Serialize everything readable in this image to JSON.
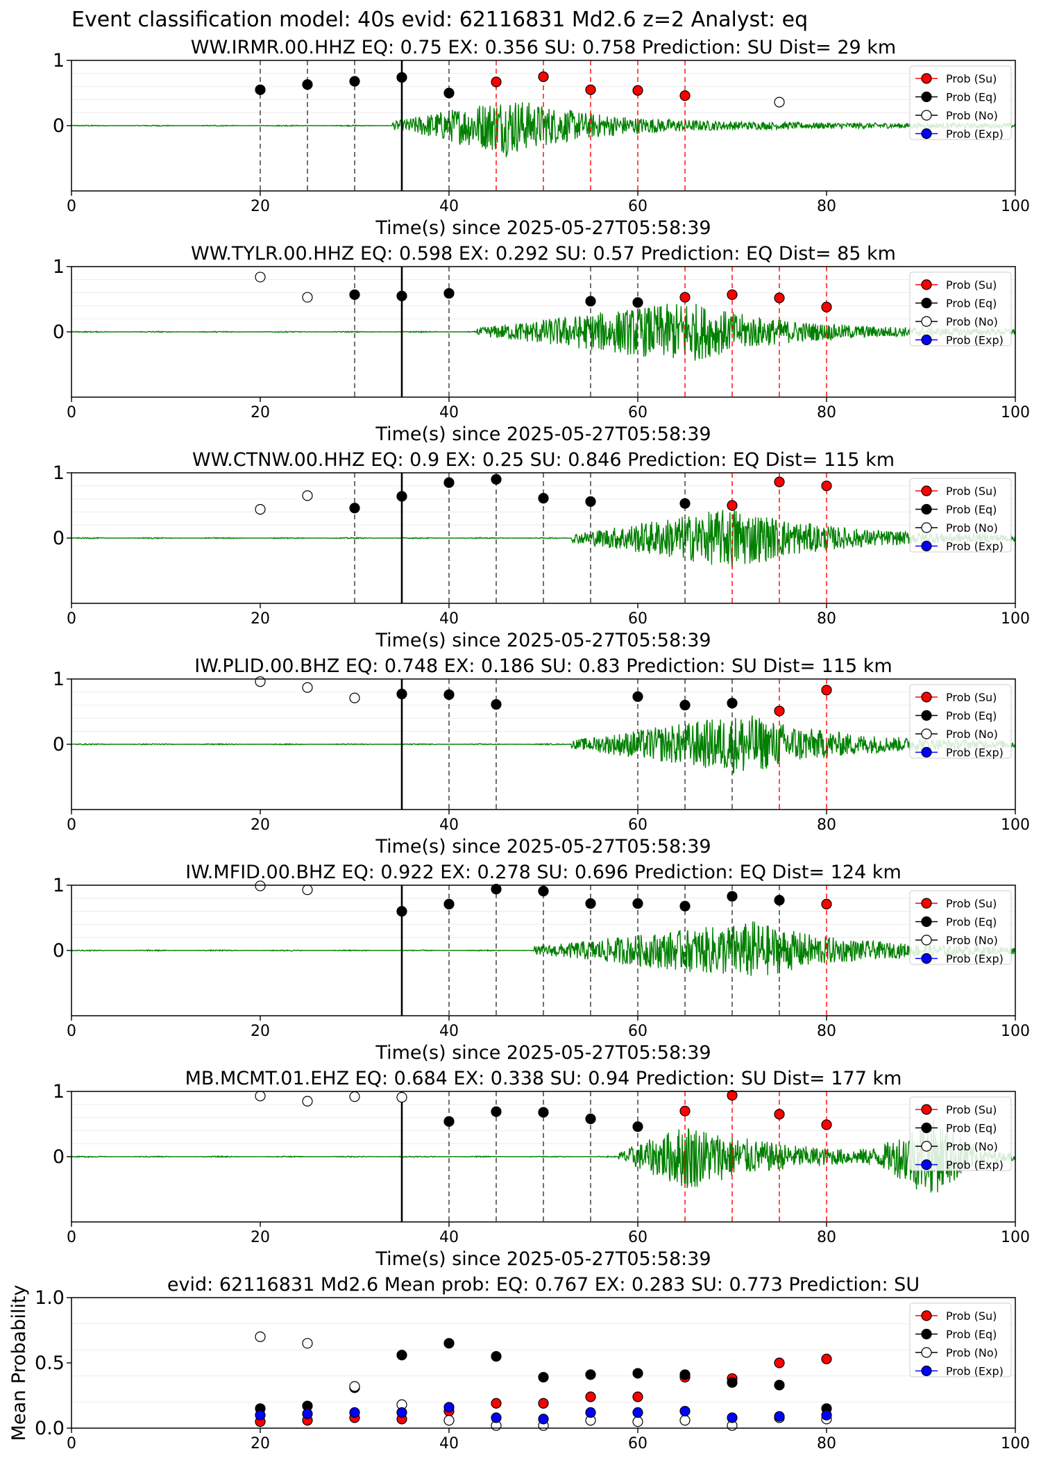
{
  "figure_title": "Event classification model: 40s evid: 62116831 Md2.6 z=2 Analyst: eq",
  "xlabel": "Time(s) since 2025-05-27T05:58:39",
  "legend_labels": [
    "Prob (Su)",
    "Prob (Eq)",
    "Prob (No)",
    "Prob (Exp)"
  ],
  "colors": {
    "su": "#ff0000",
    "eq": "#000000",
    "no": "#ffffff",
    "exp": "#0000ff",
    "waveform": "#008000",
    "onset_line": "#000000"
  },
  "chart_data": [
    {
      "type": "scatter",
      "title": "WW.IRMR.00.HHZ   EQ: 0.75  EX: 0.356  SU: 0.758   Prediction: SU    Dist= 29 km",
      "xlim": [
        0,
        100
      ],
      "ylim": [
        -1,
        1
      ],
      "yticks": [
        0,
        1
      ],
      "xticks": [
        0,
        20,
        40,
        60,
        80,
        100
      ],
      "onset": 35,
      "waveform": {
        "start": 34,
        "peak": 46,
        "end": 100,
        "amp": 0.75
      },
      "points": [
        {
          "x": 20,
          "y": 0.55,
          "cls": "eq"
        },
        {
          "x": 25,
          "y": 0.63,
          "cls": "eq"
        },
        {
          "x": 30,
          "y": 0.68,
          "cls": "eq"
        },
        {
          "x": 35,
          "y": 0.74,
          "cls": "eq"
        },
        {
          "x": 40,
          "y": 0.5,
          "cls": "eq"
        },
        {
          "x": 45,
          "y": 0.67,
          "cls": "su"
        },
        {
          "x": 50,
          "y": 0.75,
          "cls": "su"
        },
        {
          "x": 55,
          "y": 0.55,
          "cls": "su"
        },
        {
          "x": 60,
          "y": 0.54,
          "cls": "su"
        },
        {
          "x": 65,
          "y": 0.46,
          "cls": "su"
        },
        {
          "x": 75,
          "y": 0.36,
          "cls": "no"
        }
      ]
    },
    {
      "type": "scatter",
      "title": "WW.TYLR.00.HHZ   EQ: 0.598  EX: 0.292  SU: 0.57   Prediction: EQ    Dist= 85 km",
      "xlim": [
        0,
        100
      ],
      "ylim": [
        -1,
        1
      ],
      "yticks": [
        0,
        1
      ],
      "xticks": [
        0,
        20,
        40,
        60,
        80,
        100
      ],
      "onset": 35,
      "waveform": {
        "start": 43,
        "peak": 65,
        "end": 100,
        "amp": 0.8
      },
      "points": [
        {
          "x": 20,
          "y": 0.84,
          "cls": "no"
        },
        {
          "x": 25,
          "y": 0.53,
          "cls": "no"
        },
        {
          "x": 30,
          "y": 0.57,
          "cls": "eq"
        },
        {
          "x": 35,
          "y": 0.55,
          "cls": "eq"
        },
        {
          "x": 40,
          "y": 0.59,
          "cls": "eq"
        },
        {
          "x": 55,
          "y": 0.47,
          "cls": "eq"
        },
        {
          "x": 60,
          "y": 0.45,
          "cls": "eq"
        },
        {
          "x": 65,
          "y": 0.53,
          "cls": "su"
        },
        {
          "x": 70,
          "y": 0.57,
          "cls": "su"
        },
        {
          "x": 75,
          "y": 0.52,
          "cls": "su"
        },
        {
          "x": 80,
          "y": 0.38,
          "cls": "su"
        }
      ]
    },
    {
      "type": "scatter",
      "title": "WW.CTNW.00.HHZ   EQ: 0.9  EX: 0.25  SU: 0.846   Prediction: EQ    Dist= 115 km",
      "xlim": [
        0,
        100
      ],
      "ylim": [
        -1,
        1
      ],
      "yticks": [
        0,
        1
      ],
      "xticks": [
        0,
        20,
        40,
        60,
        80,
        100
      ],
      "onset": 35,
      "waveform": {
        "start": 53,
        "peak": 70,
        "end": 100,
        "amp": 0.8
      },
      "points": [
        {
          "x": 20,
          "y": 0.44,
          "cls": "no"
        },
        {
          "x": 25,
          "y": 0.65,
          "cls": "no"
        },
        {
          "x": 30,
          "y": 0.46,
          "cls": "eq"
        },
        {
          "x": 35,
          "y": 0.64,
          "cls": "eq"
        },
        {
          "x": 40,
          "y": 0.85,
          "cls": "eq"
        },
        {
          "x": 45,
          "y": 0.9,
          "cls": "eq"
        },
        {
          "x": 50,
          "y": 0.61,
          "cls": "eq"
        },
        {
          "x": 55,
          "y": 0.56,
          "cls": "eq"
        },
        {
          "x": 65,
          "y": 0.53,
          "cls": "eq"
        },
        {
          "x": 70,
          "y": 0.5,
          "cls": "su"
        },
        {
          "x": 75,
          "y": 0.86,
          "cls": "su"
        },
        {
          "x": 80,
          "y": 0.8,
          "cls": "su"
        }
      ]
    },
    {
      "type": "scatter",
      "title": "IW.PLID.00.BHZ   EQ: 0.748  EX: 0.186  SU: 0.83   Prediction: SU    Dist= 115 km",
      "xlim": [
        0,
        100
      ],
      "ylim": [
        -1,
        1
      ],
      "yticks": [
        0,
        1
      ],
      "xticks": [
        0,
        20,
        40,
        60,
        80,
        100
      ],
      "onset": 35,
      "waveform": {
        "start": 53,
        "peak": 71,
        "end": 100,
        "amp": 0.8
      },
      "points": [
        {
          "x": 20,
          "y": 0.96,
          "cls": "no"
        },
        {
          "x": 25,
          "y": 0.87,
          "cls": "no"
        },
        {
          "x": 30,
          "y": 0.71,
          "cls": "no"
        },
        {
          "x": 35,
          "y": 0.77,
          "cls": "eq"
        },
        {
          "x": 40,
          "y": 0.76,
          "cls": "eq"
        },
        {
          "x": 45,
          "y": 0.61,
          "cls": "eq"
        },
        {
          "x": 60,
          "y": 0.73,
          "cls": "eq"
        },
        {
          "x": 65,
          "y": 0.6,
          "cls": "eq"
        },
        {
          "x": 70,
          "y": 0.63,
          "cls": "eq"
        },
        {
          "x": 75,
          "y": 0.51,
          "cls": "su"
        },
        {
          "x": 80,
          "y": 0.83,
          "cls": "su"
        }
      ]
    },
    {
      "type": "scatter",
      "title": "IW.MFID.00.BHZ   EQ: 0.922  EX: 0.278  SU: 0.696   Prediction: EQ    Dist= 124 km",
      "xlim": [
        0,
        100
      ],
      "ylim": [
        -1,
        1
      ],
      "yticks": [
        0,
        1
      ],
      "xticks": [
        0,
        20,
        40,
        60,
        80,
        100
      ],
      "onset": 35,
      "waveform": {
        "start": 49,
        "peak": 72,
        "end": 100,
        "amp": 0.75
      },
      "points": [
        {
          "x": 20,
          "y": 0.99,
          "cls": "no"
        },
        {
          "x": 25,
          "y": 0.93,
          "cls": "no"
        },
        {
          "x": 35,
          "y": 0.6,
          "cls": "eq"
        },
        {
          "x": 40,
          "y": 0.71,
          "cls": "eq"
        },
        {
          "x": 45,
          "y": 0.94,
          "cls": "eq"
        },
        {
          "x": 50,
          "y": 0.91,
          "cls": "eq"
        },
        {
          "x": 55,
          "y": 0.72,
          "cls": "eq"
        },
        {
          "x": 60,
          "y": 0.72,
          "cls": "eq"
        },
        {
          "x": 65,
          "y": 0.68,
          "cls": "eq"
        },
        {
          "x": 70,
          "y": 0.83,
          "cls": "eq"
        },
        {
          "x": 75,
          "y": 0.77,
          "cls": "eq"
        },
        {
          "x": 80,
          "y": 0.71,
          "cls": "su"
        }
      ]
    },
    {
      "type": "scatter",
      "title": "MB.MCMT.01.EHZ   EQ: 0.684  EX: 0.338  SU: 0.94   Prediction: SU    Dist= 177 km",
      "xlim": [
        0,
        100
      ],
      "ylim": [
        -1,
        1
      ],
      "yticks": [
        0,
        1
      ],
      "xticks": [
        0,
        20,
        40,
        60,
        80,
        100
      ],
      "onset": 35,
      "waveform": {
        "start": 58,
        "peak": 65,
        "end": 100,
        "amp": 0.85,
        "second_peak": 91
      },
      "points": [
        {
          "x": 20,
          "y": 0.93,
          "cls": "no"
        },
        {
          "x": 25,
          "y": 0.85,
          "cls": "no"
        },
        {
          "x": 30,
          "y": 0.92,
          "cls": "no"
        },
        {
          "x": 35,
          "y": 0.91,
          "cls": "no"
        },
        {
          "x": 40,
          "y": 0.54,
          "cls": "eq"
        },
        {
          "x": 45,
          "y": 0.69,
          "cls": "eq"
        },
        {
          "x": 50,
          "y": 0.68,
          "cls": "eq"
        },
        {
          "x": 55,
          "y": 0.58,
          "cls": "eq"
        },
        {
          "x": 60,
          "y": 0.46,
          "cls": "eq"
        },
        {
          "x": 65,
          "y": 0.7,
          "cls": "su"
        },
        {
          "x": 70,
          "y": 0.94,
          "cls": "su"
        },
        {
          "x": 75,
          "y": 0.65,
          "cls": "su"
        },
        {
          "x": 80,
          "y": 0.49,
          "cls": "su"
        }
      ]
    },
    {
      "type": "scatter",
      "title": "evid: 62116831  Md2.6   Mean prob:   EQ: 0.767  EX: 0.283  SU: 0.773   Prediction: SU",
      "ylabel": "Mean Probability",
      "xlim": [
        0,
        100
      ],
      "ylim": [
        0,
        1
      ],
      "yticks": [
        0.0,
        0.5,
        1.0
      ],
      "ytick_labels": [
        "0.0",
        "0.5",
        "1.0"
      ],
      "xticks": [
        0,
        20,
        40,
        60,
        80,
        100
      ],
      "series": [
        {
          "name": "Prob (Su)",
          "cls": "su",
          "x": [
            20,
            25,
            30,
            35,
            40,
            45,
            50,
            55,
            60,
            65,
            70,
            75,
            80
          ],
          "values": [
            0.05,
            0.06,
            0.08,
            0.07,
            0.13,
            0.19,
            0.19,
            0.24,
            0.24,
            0.39,
            0.38,
            0.5,
            0.53
          ]
        },
        {
          "name": "Prob (Eq)",
          "cls": "eq",
          "x": [
            20,
            25,
            30,
            35,
            40,
            45,
            50,
            55,
            60,
            65,
            70,
            75,
            80
          ],
          "values": [
            0.15,
            0.17,
            0.31,
            0.56,
            0.65,
            0.55,
            0.39,
            0.41,
            0.42,
            0.41,
            0.35,
            0.33,
            0.15
          ]
        },
        {
          "name": "Prob (No)",
          "cls": "no",
          "x": [
            20,
            25,
            30,
            35,
            40,
            45,
            50,
            55,
            60,
            65,
            70,
            75,
            80
          ],
          "values": [
            0.7,
            0.65,
            0.32,
            0.18,
            0.06,
            0.02,
            0.02,
            0.06,
            0.05,
            0.06,
            0.02,
            0.08,
            0.07
          ]
        },
        {
          "name": "Prob (Exp)",
          "cls": "exp",
          "x": [
            20,
            25,
            30,
            35,
            40,
            45,
            50,
            55,
            60,
            65,
            70,
            75,
            80
          ],
          "values": [
            0.1,
            0.11,
            0.12,
            0.12,
            0.16,
            0.08,
            0.07,
            0.12,
            0.12,
            0.13,
            0.08,
            0.09,
            0.1
          ]
        }
      ]
    }
  ]
}
